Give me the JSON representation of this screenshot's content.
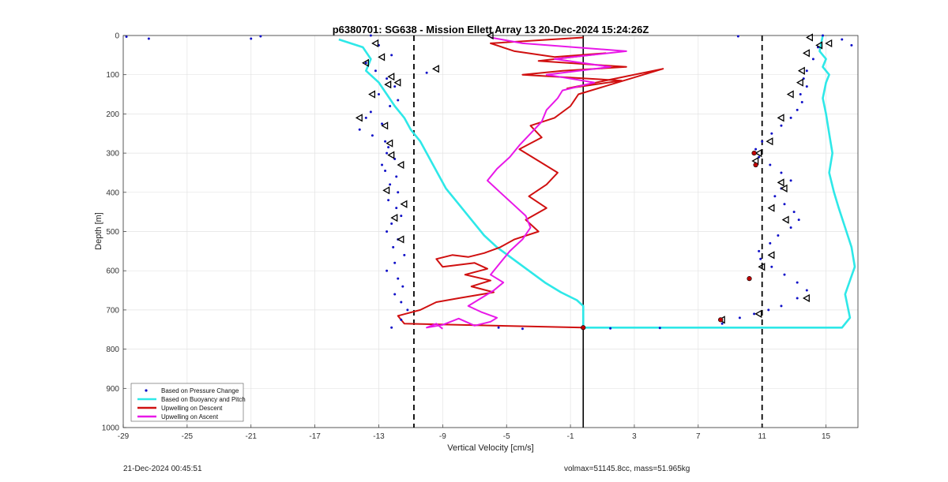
{
  "chart_data": {
    "type": "scatter",
    "title": "p6380701: SG638 - Mission Ellett Array 13 20-Dec-2024 15:24:26Z",
    "xlabel": "Vertical Velocity [cm/s]",
    "ylabel": "Depth [m]",
    "xlim": [
      -29,
      17
    ],
    "ylim": [
      1000,
      0
    ],
    "y_reversed": true,
    "grid": true,
    "xticks": [
      "-29",
      "-25",
      "-21",
      "-17",
      "-13",
      "-9",
      "-5",
      "-1",
      "3",
      "7",
      "11",
      "15"
    ],
    "yticks": [
      "0",
      "100",
      "200",
      "300",
      "400",
      "500",
      "600",
      "700",
      "800",
      "900",
      "1000"
    ],
    "legend_position": "bottom-left",
    "reference_lines": [
      {
        "x": -10.8,
        "style": "dashed",
        "color": "#000000"
      },
      {
        "x": 11.0,
        "style": "dashed",
        "color": "#000000"
      },
      {
        "x": -0.2,
        "style": "solid",
        "color": "#000000"
      }
    ],
    "series": [
      {
        "name": "Based on Pressure Change",
        "style": "dots",
        "color": "#1010c8",
        "descent": {
          "x": [
            -13.5,
            -13.0,
            -12.2,
            -13.8,
            -13.2,
            -12.5,
            -12.0,
            -13.0,
            -11.8,
            -12.3,
            -13.5,
            -13.8,
            -12.8,
            -14.2,
            -13.4,
            -12.6,
            -12.4,
            -12.5,
            -12.0,
            -12.8,
            -12.6,
            -11.9,
            -12.3,
            -11.8,
            -12.4,
            -11.9,
            -11.6,
            -12.2,
            -12.5,
            -11.8,
            -12.1,
            -11.4,
            -12.0,
            -12.5,
            -11.8,
            -11.5,
            -12.0,
            -11.6,
            -11.2,
            -11.6,
            -12.2
          ],
          "y": [
            0,
            25,
            50,
            70,
            90,
            110,
            130,
            150,
            165,
            180,
            195,
            210,
            225,
            240,
            255,
            270,
            285,
            300,
            315,
            330,
            345,
            360,
            380,
            400,
            420,
            440,
            460,
            480,
            500,
            520,
            540,
            560,
            580,
            600,
            620,
            640,
            660,
            680,
            700,
            725,
            745
          ]
        },
        "ascent": {
          "x": [
            14.8,
            14.5,
            14.2,
            13.8,
            13.6,
            13.8,
            13.4,
            13.5,
            13.2,
            12.8,
            12.2,
            11.6,
            11.0,
            10.6,
            10.8,
            11.5,
            12.2,
            12.8,
            12.2,
            11.8,
            12.4,
            13.0,
            13.3,
            12.8,
            12.0,
            11.5,
            10.8,
            10.9,
            11.6,
            12.4,
            13.2,
            13.8,
            13.2,
            12.2,
            11.4,
            10.5,
            9.6,
            8.5
          ],
          "y": [
            0,
            30,
            60,
            90,
            110,
            130,
            150,
            170,
            190,
            210,
            230,
            250,
            270,
            290,
            310,
            330,
            350,
            370,
            390,
            410,
            430,
            450,
            470,
            490,
            510,
            530,
            550,
            570,
            590,
            610,
            630,
            650,
            670,
            690,
            700,
            710,
            720,
            735
          ]
        },
        "outliers": {
          "x": [
            -28.8,
            -27.4,
            -21.0,
            -20.4,
            -10.0,
            -5.5,
            -4.0,
            1.5,
            4.6,
            9.5,
            16.0,
            16.6
          ],
          "y": [
            3,
            8,
            8,
            2,
            95,
            745,
            748,
            747,
            746,
            2,
            10,
            25
          ]
        }
      },
      {
        "name": "Based on Buoyancy and Pitch",
        "style": "line",
        "color": "#2ee8e8",
        "descent": {
          "x": [
            -15.5,
            -14.0,
            -13.5,
            -13.8,
            -13.0,
            -12.5,
            -12.0,
            -11.4,
            -11.0,
            -10.4,
            -10.0,
            -9.6,
            -9.2,
            -8.8,
            -8.0,
            -7.2,
            -6.4,
            -5.6,
            -4.6,
            -3.6,
            -2.6,
            -1.6,
            -0.6,
            -0.2,
            -0.2
          ],
          "y": [
            10,
            30,
            60,
            90,
            120,
            150,
            180,
            210,
            240,
            270,
            300,
            330,
            360,
            390,
            430,
            470,
            510,
            540,
            570,
            600,
            630,
            655,
            675,
            690,
            745
          ]
        },
        "ascent": {
          "x": [
            -0.2,
            16.0,
            16.5,
            16.2,
            16.8,
            16.6,
            16.2,
            15.8,
            15.5,
            15.2,
            15.4,
            15.2,
            15.0,
            14.8,
            15.0,
            15.2,
            14.8,
            15.0,
            14.6,
            14.8
          ],
          "y": [
            745,
            745,
            720,
            660,
            590,
            540,
            490,
            440,
            400,
            350,
            300,
            250,
            200,
            160,
            120,
            100,
            80,
            60,
            40,
            0
          ]
        }
      },
      {
        "name": "Upwelling on Descent",
        "style": "line",
        "color": "#d01010",
        "x": [
          -0.2,
          -6.0,
          -4.5,
          -2.0,
          1.2,
          -3.0,
          2.5,
          -1.5,
          -4.0,
          2.2,
          -1.2,
          4.8,
          -0.5,
          -1.0,
          -2.0,
          -3.5,
          -2.8,
          -4.2,
          -3.0,
          -1.8,
          -2.5,
          -3.6,
          -2.5,
          -3.8,
          -3.0,
          -4.5,
          -5.4,
          -6.4,
          -7.4,
          -8.4,
          -9.4,
          -9.0,
          -7.0,
          -6.2,
          -7.6,
          -6.0,
          -7.2,
          -5.8,
          -8.0,
          -9.4,
          -10.4,
          -11.8,
          -11.4,
          -0.2
        ],
        "y": [
          5,
          20,
          40,
          55,
          45,
          65,
          80,
          90,
          100,
          115,
          135,
          85,
          150,
          180,
          210,
          230,
          260,
          290,
          320,
          350,
          380,
          410,
          440,
          470,
          500,
          520,
          540,
          555,
          565,
          560,
          570,
          590,
          580,
          595,
          610,
          625,
          640,
          655,
          670,
          680,
          700,
          715,
          735,
          745
        ]
      },
      {
        "name": "Upwelling on Ascent",
        "style": "line",
        "color": "#e818e8",
        "x": [
          -6.0,
          -4.0,
          2.5,
          -2.0,
          1.5,
          -2.5,
          0.5,
          -1.5,
          -1.8,
          -2.5,
          -2.8,
          -3.5,
          -4.2,
          -4.8,
          -5.6,
          -6.2,
          -5.4,
          -4.6,
          -3.8,
          -3.5,
          -4.0,
          -4.8,
          -5.4,
          -6.0,
          -5.2,
          -5.8,
          -6.6,
          -7.4,
          -6.6,
          -5.6,
          -6.0,
          -7.0,
          -8.0,
          -9.0,
          -10.0,
          -9.4,
          -9.0
        ],
        "y": [
          5,
          20,
          40,
          60,
          80,
          100,
          120,
          140,
          160,
          190,
          220,
          250,
          280,
          310,
          340,
          370,
          400,
          430,
          460,
          490,
          520,
          550,
          580,
          610,
          630,
          650,
          670,
          690,
          705,
          720,
          730,
          740,
          722,
          738,
          745,
          735,
          748
        ]
      }
    ],
    "markers": {
      "triangles": {
        "color": "#000000",
        "x": [
          -13.2,
          -12.8,
          -13.8,
          -12.2,
          -11.8,
          -12.4,
          -13.4,
          -14.2,
          -12.6,
          -12.3,
          -12.2,
          -11.6,
          -12.5,
          -11.4,
          -12.0,
          -11.6,
          -9.4,
          -6.0,
          14.0,
          14.6,
          13.8,
          13.5,
          13.4,
          12.8,
          12.2,
          11.5,
          10.8,
          10.6,
          12.2,
          12.4,
          11.6,
          12.5,
          11.6,
          11.0,
          10.8,
          8.5,
          13.8,
          15.2
        ],
        "y": [
          20,
          55,
          70,
          105,
          120,
          125,
          150,
          210,
          230,
          275,
          305,
          330,
          395,
          430,
          465,
          520,
          85,
          0,
          5,
          25,
          45,
          90,
          120,
          150,
          210,
          270,
          300,
          320,
          375,
          390,
          440,
          470,
          560,
          590,
          710,
          725,
          670,
          20
        ]
      },
      "red_dots": {
        "color": "#c00000",
        "x": [
          10.5,
          10.6,
          10.2,
          -0.2,
          8.4
        ],
        "y": [
          300,
          330,
          620,
          745,
          725
        ]
      }
    }
  },
  "footer": {
    "timestamp": "21-Dec-2024 00:45:51",
    "summary": "volmax=51145.8cc, mass=51.965kg"
  }
}
